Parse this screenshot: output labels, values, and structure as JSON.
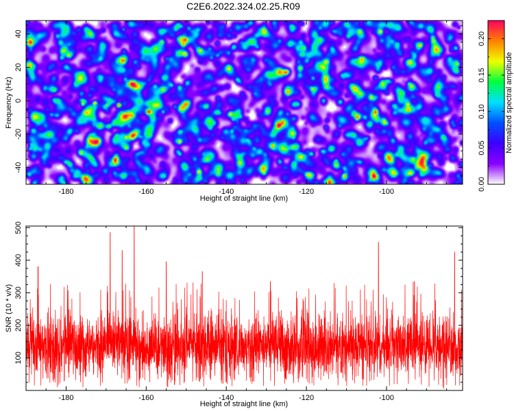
{
  "figure_title": "C2E6.2022.324.02.25.R09",
  "chart_data": [
    {
      "type": "heatmap",
      "title": "C2E6.2022.324.02.25.R09",
      "xlabel": "Height of straight line (km)",
      "ylabel": "Frequency (Hz)",
      "xlim": [
        -190,
        -81
      ],
      "ylim": [
        -50,
        48
      ],
      "x_ticks": [
        -180,
        -160,
        -140,
        -120,
        -100
      ],
      "y_ticks": [
        -40,
        -20,
        0,
        20,
        40
      ],
      "colorbar": {
        "label": "Normalized spectral amplitude",
        "range": [
          0,
          0.225
        ],
        "ticks": [
          "0.00",
          "0.05",
          "0.10",
          "0.15",
          "0.20"
        ],
        "colormap": [
          "#ffffff",
          "#8a00ff",
          "#3c00ff",
          "#0050ff",
          "#00e0ff",
          "#00ff40",
          "#f0ff00",
          "#ff8000",
          "#ff0060"
        ]
      },
      "z_description": "noise-like speckle field, typical amplitude 0.01-0.06, peaks near 0.2",
      "hotspots": [
        {
          "x": -176,
          "y": -1,
          "z": 0.17
        },
        {
          "x": -173,
          "y": -1,
          "z": 0.19
        },
        {
          "x": -170,
          "y": -2,
          "z": 0.16
        },
        {
          "x": -167,
          "y": -2,
          "z": 0.2
        },
        {
          "x": -163,
          "y": -4,
          "z": 0.12
        },
        {
          "x": -159,
          "y": -3,
          "z": 0.13
        },
        {
          "x": -156,
          "y": -6,
          "z": 0.12
        },
        {
          "x": -153,
          "y": -3,
          "z": 0.1
        },
        {
          "x": -188,
          "y": -17,
          "z": 0.1
        },
        {
          "x": -103,
          "y": 14,
          "z": 0.09
        },
        {
          "x": -84,
          "y": 31,
          "z": 0.08
        }
      ]
    },
    {
      "type": "line",
      "xlabel": "Height of straight line (km)",
      "ylabel": "SNR (10 * v/v)",
      "xlim": [
        -190,
        -81
      ],
      "ylim": [
        0,
        505
      ],
      "x_ticks": [
        -180,
        -160,
        -140,
        -120,
        -100
      ],
      "y_ticks": [
        100,
        200,
        300,
        400,
        500
      ],
      "color": "#ff0000",
      "baseline": 135,
      "noise_band": [
        30,
        290
      ],
      "spikes": [
        {
          "x": -187,
          "y": 380
        },
        {
          "x": -169,
          "y": 485
        },
        {
          "x": -166,
          "y": 430
        },
        {
          "x": -163,
          "y": 505
        },
        {
          "x": -155,
          "y": 395
        },
        {
          "x": -146,
          "y": 365
        },
        {
          "x": -129,
          "y": 335
        },
        {
          "x": -102,
          "y": 455
        },
        {
          "x": -93,
          "y": 335
        },
        {
          "x": -83,
          "y": 425
        }
      ]
    }
  ]
}
